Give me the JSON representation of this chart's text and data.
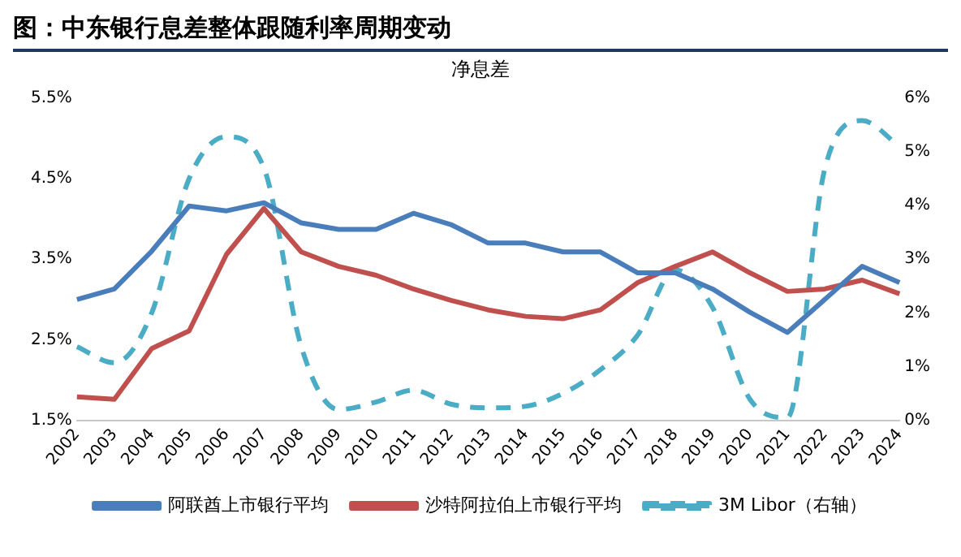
{
  "chart_data": {
    "type": "line",
    "title": "图：中东银行息差整体跟随利率周期变动",
    "subtitle": "净息差",
    "categories": [
      "2002",
      "2003",
      "2004",
      "2005",
      "2006",
      "2007",
      "2008",
      "2009",
      "2010",
      "2011",
      "2012",
      "2013",
      "2014",
      "2015",
      "2016",
      "2017",
      "2018",
      "2019",
      "2020",
      "2021",
      "2022",
      "2023",
      "2024"
    ],
    "series": [
      {
        "name": "阿联酋上市银行平均",
        "color": "#4a7ebb",
        "line_style": "solid",
        "values": [
          3.0,
          3.13,
          3.6,
          4.16,
          4.1,
          4.2,
          3.95,
          3.87,
          3.87,
          4.07,
          3.93,
          3.7,
          3.7,
          3.59,
          3.59,
          3.33,
          3.33,
          3.13,
          2.84,
          2.59,
          3.0,
          3.41,
          3.21
        ]
      },
      {
        "name": "沙特阿拉伯上市银行平均",
        "color": "#c0504d",
        "line_style": "solid",
        "values": [
          1.79,
          1.76,
          2.39,
          2.61,
          3.56,
          4.13,
          3.59,
          3.41,
          3.3,
          3.13,
          2.99,
          2.87,
          2.79,
          2.76,
          2.87,
          3.21,
          3.41,
          3.59,
          3.33,
          3.1,
          3.13,
          3.24,
          3.07
        ]
      },
      {
        "name": "3M Libor（右轴）",
        "color": "#4bacc6",
        "line_style": "dashed",
        "axis": "y2",
        "values": [
          1.37,
          1.07,
          2.0,
          4.5,
          5.28,
          4.7,
          1.37,
          0.2,
          0.34,
          0.56,
          0.3,
          0.23,
          0.26,
          0.5,
          0.94,
          1.59,
          2.8,
          2.1,
          0.39,
          0.05,
          4.68,
          5.58,
          5.1
        ]
      }
    ],
    "ylim": [
      1.5,
      5.5
    ],
    "yticks": [
      {
        "value": 1.5,
        "label": "1.5%"
      },
      {
        "value": 2.5,
        "label": "2.5%"
      },
      {
        "value": 3.5,
        "label": "3.5%"
      },
      {
        "value": 4.5,
        "label": "4.5%"
      },
      {
        "value": 5.5,
        "label": "5.5%"
      }
    ],
    "y2lim": [
      0,
      6
    ],
    "y2ticks": [
      {
        "value": 0,
        "label": "0%"
      },
      {
        "value": 1,
        "label": "1%"
      },
      {
        "value": 2,
        "label": "2%"
      },
      {
        "value": 3,
        "label": "3%"
      },
      {
        "value": 4,
        "label": "4%"
      },
      {
        "value": 5,
        "label": "5%"
      },
      {
        "value": 6,
        "label": "6%"
      }
    ],
    "grid": false,
    "legend": "bottom",
    "marker": "none"
  }
}
